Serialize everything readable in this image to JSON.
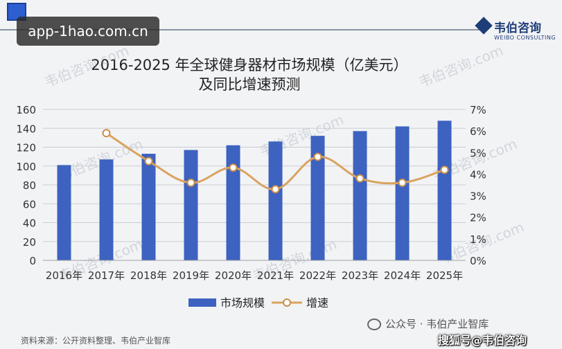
{
  "overlay": {
    "url_badge": "app-1hao.com.cn",
    "brand_name": "韦伯咨询",
    "brand_sub": "WEIBO CONSULTING",
    "watermark_text": "韦伯咨询.com"
  },
  "title": {
    "line1": "2016-2025 年全球健身器材市场规模（亿美元）",
    "line2": "及同比增速预测"
  },
  "footer": {
    "source": "资料来源：公开资料整理、韦伯产业智库",
    "wechat": "公众号 · 韦伯产业智库",
    "sohu": "搜狐号@韦伯咨询"
  },
  "colors": {
    "bar": "#3d62c0",
    "line": "#d9a35e",
    "marker_fill": "#ffffff",
    "marker_stroke": "#c98f4a",
    "grid": "#c9ccd2",
    "axis_text": "#333333"
  },
  "chart_data": {
    "type": "bar",
    "categories": [
      "2016年",
      "2017年",
      "2018年",
      "2019年",
      "2020年",
      "2021年",
      "2022年",
      "2023年",
      "2024年",
      "2025年"
    ],
    "series": [
      {
        "name": "市场规模",
        "type": "bar",
        "axis": "left",
        "values": [
          101,
          107,
          113,
          117,
          122,
          126,
          132,
          137,
          142,
          148
        ]
      },
      {
        "name": "增速",
        "type": "line",
        "axis": "right",
        "smooth": true,
        "values": [
          null,
          5.9,
          4.6,
          3.6,
          4.3,
          3.3,
          4.8,
          3.8,
          3.6,
          4.2
        ]
      }
    ],
    "y_left": {
      "min": 0,
      "max": 160,
      "step": 20,
      "ticks": [
        "0",
        "20",
        "40",
        "60",
        "80",
        "100",
        "120",
        "140",
        "160"
      ]
    },
    "y_right": {
      "min": 0,
      "max": 7,
      "step": 1,
      "ticks": [
        "0%",
        "1%",
        "2%",
        "3%",
        "4%",
        "5%",
        "6%",
        "7%"
      ]
    },
    "grid": true,
    "legend_position": "bottom"
  }
}
